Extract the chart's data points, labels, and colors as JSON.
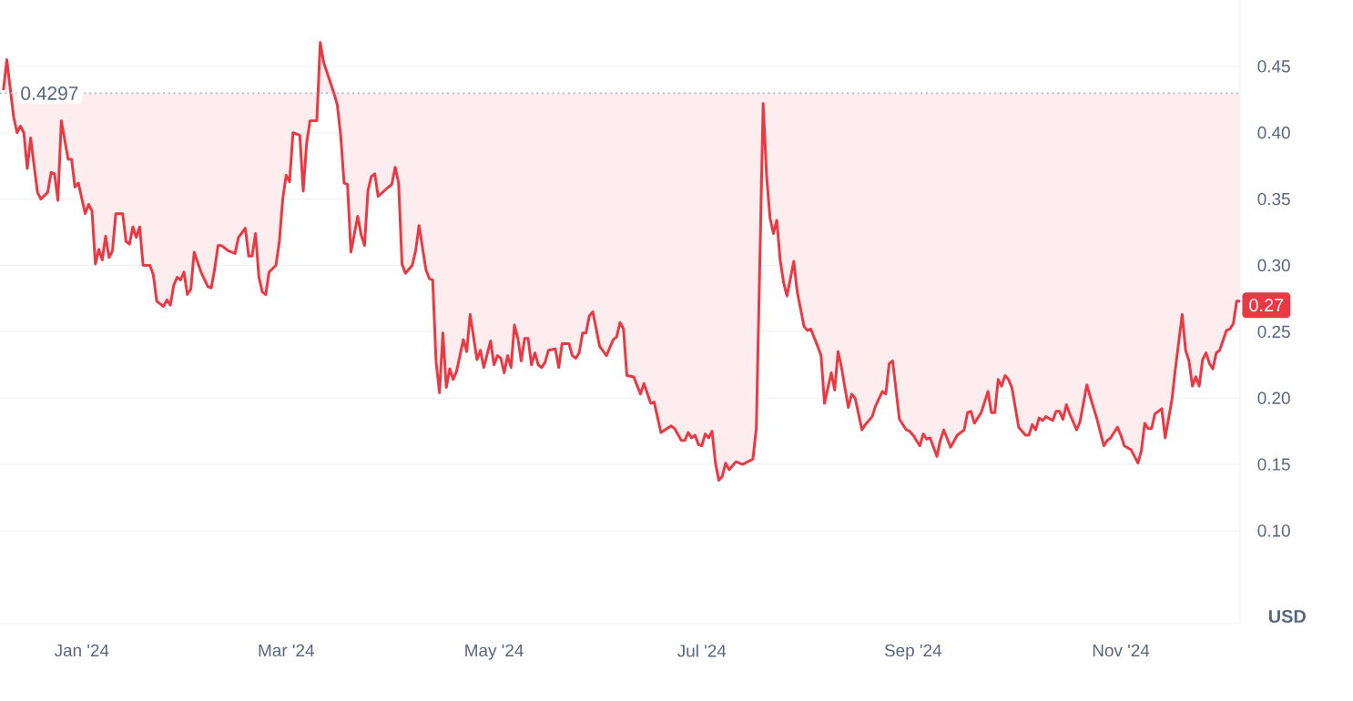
{
  "chart_data": {
    "type": "line",
    "ylabel": "USD",
    "color": "#ea3943",
    "grid": "y",
    "xlim": [
      "2023-12-08",
      "2024-12-06"
    ],
    "ylim": [
      0.03,
      0.5
    ],
    "xticks": [
      {
        "value": "2024-01-01",
        "label": "Jan '24"
      },
      {
        "value": "2024-03-01",
        "label": "Mar '24"
      },
      {
        "value": "2024-05-01",
        "label": "May '24"
      },
      {
        "value": "2024-07-01",
        "label": "Jul '24"
      },
      {
        "value": "2024-09-01",
        "label": "Sep '24"
      },
      {
        "value": "2024-11-01",
        "label": "Nov '24"
      }
    ],
    "yticks": [
      {
        "value": 0.1,
        "label": "0.10"
      },
      {
        "value": 0.15,
        "label": "0.15"
      },
      {
        "value": 0.2,
        "label": "0.20"
      },
      {
        "value": 0.25,
        "label": "0.25"
      },
      {
        "value": 0.3,
        "label": "0.30"
      },
      {
        "value": 0.35,
        "label": "0.35"
      },
      {
        "value": 0.4,
        "label": "0.40"
      },
      {
        "value": 0.45,
        "label": "0.45"
      }
    ],
    "ref_lines": [
      {
        "axis": "y",
        "value": 0.4297,
        "label": "0.4297",
        "color": "#a6b0c3",
        "line_style": "dotted"
      }
    ],
    "annotations": [
      {
        "text": "0.27",
        "x": "2024-12-06",
        "y": 0.27
      }
    ],
    "x": [
      "2023-12-09",
      "2023-12-10",
      "2023-12-12",
      "2023-12-13",
      "2023-12-14",
      "2023-12-15",
      "2023-12-16",
      "2023-12-17",
      "2023-12-19",
      "2023-12-20",
      "2023-12-22",
      "2023-12-23",
      "2023-12-24",
      "2023-12-25",
      "2023-12-26",
      "2023-12-28",
      "2023-12-29",
      "2023-12-30",
      "2023-12-31",
      "2024-01-02",
      "2024-01-03",
      "2024-01-04",
      "2024-01-05",
      "2024-01-06",
      "2024-01-07",
      "2024-01-08",
      "2024-01-09",
      "2024-01-10",
      "2024-01-11",
      "2024-01-13",
      "2024-01-14",
      "2024-01-15",
      "2024-01-16",
      "2024-01-17",
      "2024-01-18",
      "2024-01-19",
      "2024-01-21",
      "2024-01-22",
      "2024-01-23",
      "2024-01-25",
      "2024-01-26",
      "2024-01-27",
      "2024-01-28",
      "2024-01-29",
      "2024-01-30",
      "2024-01-31",
      "2024-02-01",
      "2024-02-02",
      "2024-02-03",
      "2024-02-05",
      "2024-02-07",
      "2024-02-08",
      "2024-02-09",
      "2024-02-10",
      "2024-02-11",
      "2024-02-13",
      "2024-02-15",
      "2024-02-16",
      "2024-02-18",
      "2024-02-19",
      "2024-02-20",
      "2024-02-21",
      "2024-02-22",
      "2024-02-23",
      "2024-02-24",
      "2024-02-25",
      "2024-02-27",
      "2024-02-28",
      "2024-02-29",
      "2024-03-01",
      "2024-03-02",
      "2024-03-03",
      "2024-03-05",
      "2024-03-06",
      "2024-03-07",
      "2024-03-08",
      "2024-03-10",
      "2024-03-11",
      "2024-03-12",
      "2024-03-15",
      "2024-03-16",
      "2024-03-17",
      "2024-03-18",
      "2024-03-19",
      "2024-03-20",
      "2024-03-22",
      "2024-03-23",
      "2024-03-24",
      "2024-03-25",
      "2024-03-26",
      "2024-03-27",
      "2024-03-28",
      "2024-03-31",
      "2024-04-01",
      "2024-04-02",
      "2024-04-03",
      "2024-04-04",
      "2024-04-05",
      "2024-04-07",
      "2024-04-08",
      "2024-04-09",
      "2024-04-11",
      "2024-04-12",
      "2024-04-13",
      "2024-04-14",
      "2024-04-15",
      "2024-04-16",
      "2024-04-17",
      "2024-04-18",
      "2024-04-19",
      "2024-04-20",
      "2024-04-22",
      "2024-04-23",
      "2024-04-24",
      "2024-04-26",
      "2024-04-27",
      "2024-04-28",
      "2024-04-30",
      "2024-05-01",
      "2024-05-02",
      "2024-05-03",
      "2024-05-04",
      "2024-05-05",
      "2024-05-06",
      "2024-05-07",
      "2024-05-08",
      "2024-05-09",
      "2024-05-10",
      "2024-05-11",
      "2024-05-12",
      "2024-05-13",
      "2024-05-14",
      "2024-05-15",
      "2024-05-16",
      "2024-05-17",
      "2024-05-19",
      "2024-05-20",
      "2024-05-21",
      "2024-05-23",
      "2024-05-24",
      "2024-05-25",
      "2024-05-26",
      "2024-05-27",
      "2024-05-28",
      "2024-05-29",
      "2024-05-30",
      "2024-05-31",
      "2024-06-01",
      "2024-06-03",
      "2024-06-05",
      "2024-06-06",
      "2024-06-07",
      "2024-06-08",
      "2024-06-09",
      "2024-06-11",
      "2024-06-13",
      "2024-06-14",
      "2024-06-16",
      "2024-06-17",
      "2024-06-19",
      "2024-06-22",
      "2024-06-23",
      "2024-06-25",
      "2024-06-26",
      "2024-06-27",
      "2024-06-28",
      "2024-06-29",
      "2024-06-30",
      "2024-07-01",
      "2024-07-02",
      "2024-07-03",
      "2024-07-04",
      "2024-07-05",
      "2024-07-06",
      "2024-07-07",
      "2024-07-08",
      "2024-07-09",
      "2024-07-11",
      "2024-07-13",
      "2024-07-16",
      "2024-07-17",
      "2024-07-19",
      "2024-07-20",
      "2024-07-21",
      "2024-07-22",
      "2024-07-23",
      "2024-07-24",
      "2024-07-25",
      "2024-07-26",
      "2024-07-28",
      "2024-07-29",
      "2024-07-31",
      "2024-08-01",
      "2024-08-02",
      "2024-08-04",
      "2024-08-05",
      "2024-08-06",
      "2024-08-08",
      "2024-08-09",
      "2024-08-10",
      "2024-08-11",
      "2024-08-13",
      "2024-08-14",
      "2024-08-15",
      "2024-08-17",
      "2024-08-18",
      "2024-08-20",
      "2024-08-21",
      "2024-08-23",
      "2024-08-24",
      "2024-08-25",
      "2024-08-26",
      "2024-08-28",
      "2024-08-30",
      "2024-08-31",
      "2024-09-01",
      "2024-09-03",
      "2024-09-04",
      "2024-09-05",
      "2024-09-06",
      "2024-09-08",
      "2024-09-09",
      "2024-09-10",
      "2024-09-12",
      "2024-09-14",
      "2024-09-16",
      "2024-09-17",
      "2024-09-18",
      "2024-09-19",
      "2024-09-21",
      "2024-09-22",
      "2024-09-23",
      "2024-09-24",
      "2024-09-25",
      "2024-09-26",
      "2024-09-27",
      "2024-09-28",
      "2024-09-29",
      "2024-09-30",
      "2024-10-02",
      "2024-10-04",
      "2024-10-05",
      "2024-10-06",
      "2024-10-07",
      "2024-10-08",
      "2024-10-09",
      "2024-10-10",
      "2024-10-12",
      "2024-10-13",
      "2024-10-14",
      "2024-10-15",
      "2024-10-16",
      "2024-10-17",
      "2024-10-19",
      "2024-10-20",
      "2024-10-22",
      "2024-10-23",
      "2024-10-25",
      "2024-10-27",
      "2024-10-28",
      "2024-10-29",
      "2024-10-31",
      "2024-11-01",
      "2024-11-02",
      "2024-11-04",
      "2024-11-06",
      "2024-11-07",
      "2024-11-08",
      "2024-11-09",
      "2024-11-10",
      "2024-11-11",
      "2024-11-13",
      "2024-11-14",
      "2024-11-16",
      "2024-11-17",
      "2024-11-19",
      "2024-11-20",
      "2024-11-21",
      "2024-11-22",
      "2024-11-23",
      "2024-11-24",
      "2024-11-25",
      "2024-11-26",
      "2024-11-27",
      "2024-11-28",
      "2024-11-29",
      "2024-11-30",
      "2024-12-02",
      "2024-12-03",
      "2024-12-04",
      "2024-12-05",
      "2024-12-06"
    ],
    "values": [
      0.432,
      0.455,
      0.412,
      0.4,
      0.405,
      0.4,
      0.373,
      0.396,
      0.355,
      0.35,
      0.355,
      0.37,
      0.369,
      0.349,
      0.409,
      0.38,
      0.38,
      0.359,
      0.362,
      0.339,
      0.346,
      0.341,
      0.301,
      0.312,
      0.304,
      0.322,
      0.306,
      0.311,
      0.339,
      0.339,
      0.318,
      0.316,
      0.329,
      0.321,
      0.329,
      0.3,
      0.3,
      0.293,
      0.273,
      0.269,
      0.274,
      0.27,
      0.285,
      0.291,
      0.289,
      0.295,
      0.278,
      0.282,
      0.31,
      0.295,
      0.284,
      0.283,
      0.297,
      0.315,
      0.315,
      0.311,
      0.309,
      0.321,
      0.328,
      0.307,
      0.307,
      0.324,
      0.291,
      0.28,
      0.278,
      0.295,
      0.3,
      0.318,
      0.35,
      0.368,
      0.363,
      0.4,
      0.398,
      0.356,
      0.392,
      0.409,
      0.409,
      0.468,
      0.453,
      0.43,
      0.421,
      0.398,
      0.362,
      0.361,
      0.31,
      0.337,
      0.323,
      0.315,
      0.356,
      0.367,
      0.369,
      0.352,
      0.359,
      0.361,
      0.374,
      0.362,
      0.301,
      0.294,
      0.3,
      0.311,
      0.33,
      0.297,
      0.29,
      0.289,
      0.227,
      0.204,
      0.249,
      0.208,
      0.222,
      0.214,
      0.22,
      0.244,
      0.235,
      0.263,
      0.229,
      0.236,
      0.223,
      0.243,
      0.225,
      0.232,
      0.23,
      0.219,
      0.232,
      0.223,
      0.255,
      0.245,
      0.228,
      0.245,
      0.245,
      0.225,
      0.234,
      0.225,
      0.223,
      0.227,
      0.236,
      0.237,
      0.223,
      0.241,
      0.241,
      0.232,
      0.23,
      0.234,
      0.249,
      0.249,
      0.262,
      0.265,
      0.252,
      0.239,
      0.232,
      0.244,
      0.246,
      0.257,
      0.252,
      0.217,
      0.216,
      0.203,
      0.211,
      0.196,
      0.197,
      0.174,
      0.179,
      0.177,
      0.168,
      0.168,
      0.174,
      0.17,
      0.172,
      0.165,
      0.164,
      0.173,
      0.17,
      0.175,
      0.151,
      0.138,
      0.141,
      0.151,
      0.146,
      0.152,
      0.15,
      0.154,
      0.177,
      0.422,
      0.368,
      0.336,
      0.324,
      0.334,
      0.304,
      0.287,
      0.277,
      0.303,
      0.28,
      0.254,
      0.251,
      0.252,
      0.239,
      0.232,
      0.196,
      0.219,
      0.206,
      0.235,
      0.223,
      0.193,
      0.203,
      0.2,
      0.176,
      0.18,
      0.186,
      0.194,
      0.205,
      0.203,
      0.226,
      0.228,
      0.184,
      0.176,
      0.175,
      0.172,
      0.164,
      0.173,
      0.169,
      0.17,
      0.156,
      0.168,
      0.176,
      0.163,
      0.172,
      0.176,
      0.189,
      0.19,
      0.181,
      0.189,
      0.197,
      0.205,
      0.189,
      0.189,
      0.214,
      0.209,
      0.217,
      0.214,
      0.208,
      0.178,
      0.172,
      0.172,
      0.18,
      0.176,
      0.185,
      0.183,
      0.186,
      0.183,
      0.19,
      0.19,
      0.184,
      0.195,
      0.188,
      0.176,
      0.182,
      0.21,
      0.201,
      0.184,
      0.164,
      0.168,
      0.17,
      0.178,
      0.172,
      0.164,
      0.161,
      0.151,
      0.16,
      0.181,
      0.177,
      0.177,
      0.188,
      0.192,
      0.17,
      0.199,
      0.222,
      0.263,
      0.236,
      0.228,
      0.209,
      0.216,
      0.209,
      0.229,
      0.234,
      0.226,
      0.222,
      0.234,
      0.236,
      0.251,
      0.252,
      0.256,
      0.273,
      0.273
    ]
  }
}
